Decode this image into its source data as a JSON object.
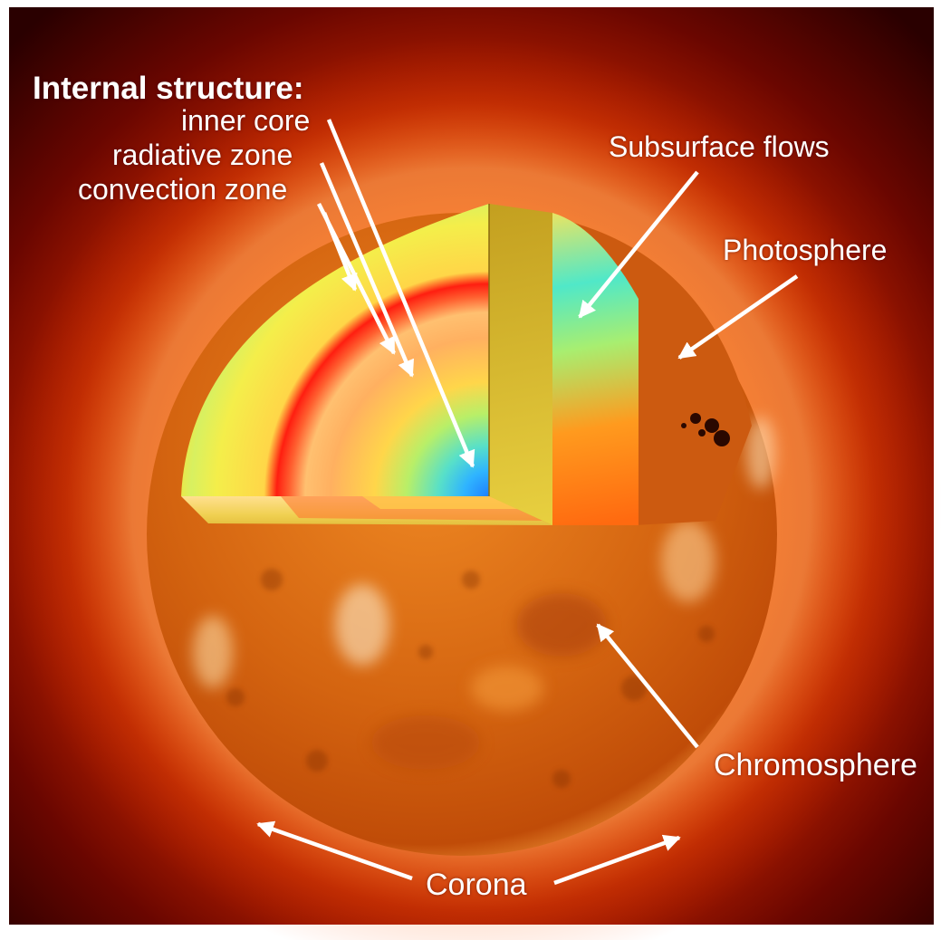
{
  "diagram": {
    "heading": "Internal structure:",
    "internal_labels": [
      "inner core",
      "radiative zone",
      "convection zone"
    ],
    "labels": {
      "subsurface_flows": "Subsurface flows",
      "photosphere": "Photosphere",
      "chromosphere": "Chromosphere",
      "corona": "Corona"
    },
    "colors": {
      "frame": "#ffffff",
      "label_text": "#ffffff",
      "corona_inner": "#e24400",
      "corona_outer": "#3a0000",
      "surface": "#d96a10",
      "core": "#2f9fff",
      "radiative": "#ffd84a",
      "convection": "#f6f04a",
      "tachocline": "#ff2a10",
      "subsurface": "#33f0c8",
      "sunspot": "#2a0800"
    }
  }
}
